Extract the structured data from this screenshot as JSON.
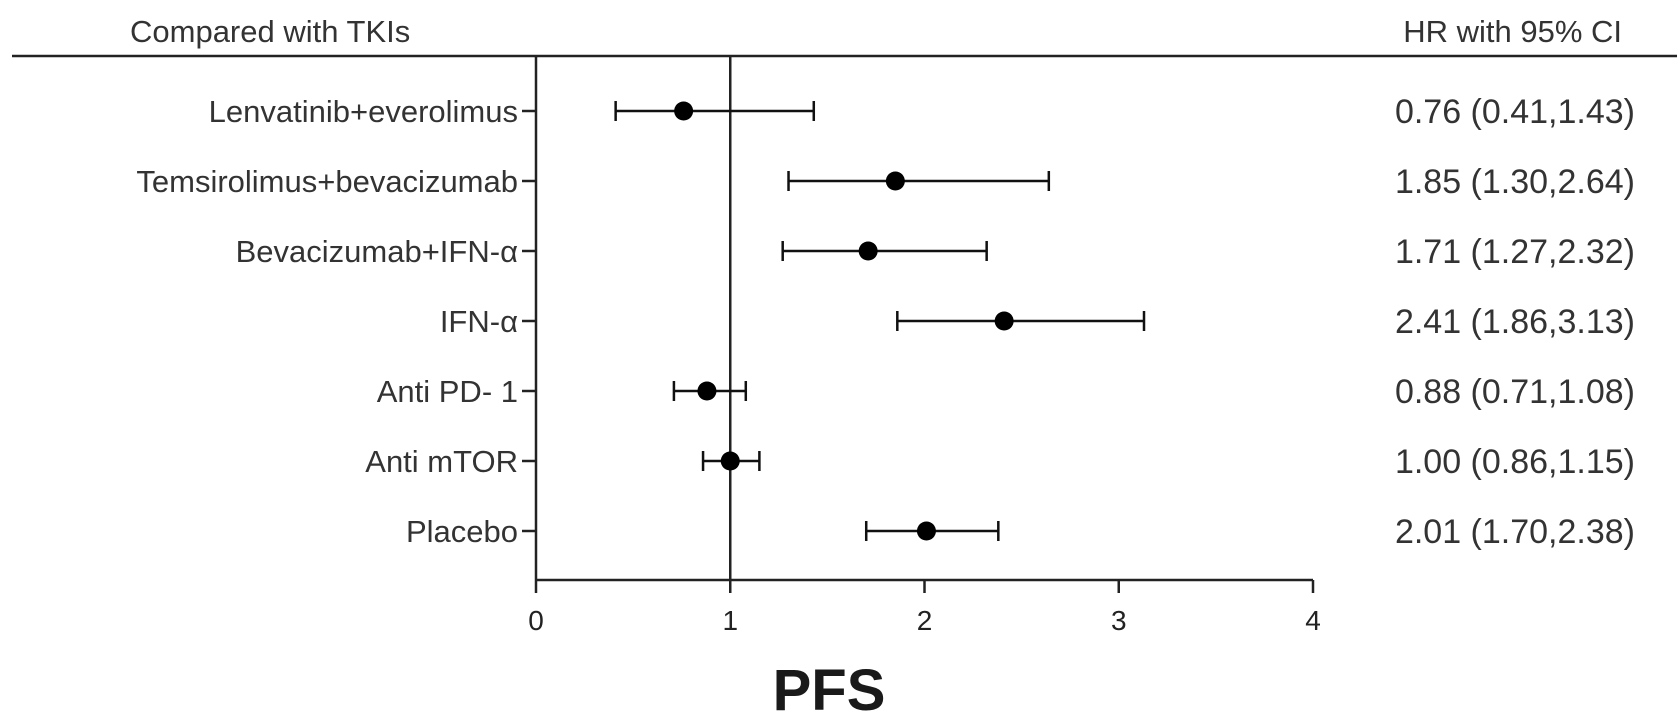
{
  "chart_data": {
    "type": "forest",
    "header_left": "Compared with TKIs",
    "header_right": "HR with 95% CI",
    "xlabel": "PFS",
    "xlim": [
      0,
      4
    ],
    "xticks": [
      "0",
      "1",
      "2",
      "3",
      "4"
    ],
    "reference_line": 1,
    "rows": [
      {
        "label": "Lenvatinib+everolimus",
        "hr": 0.76,
        "lo": 0.41,
        "hi": 1.43,
        "text": "0.76 (0.41,1.43)"
      },
      {
        "label": "Temsirolimus+bevacizumab",
        "hr": 1.85,
        "lo": 1.3,
        "hi": 2.64,
        "text": "1.85 (1.30,2.64)"
      },
      {
        "label": "Bevacizumab+IFN-α",
        "hr": 1.71,
        "lo": 1.27,
        "hi": 2.32,
        "text": "1.71 (1.27,2.32)"
      },
      {
        "label": "IFN-α",
        "hr": 2.41,
        "lo": 1.86,
        "hi": 3.13,
        "text": "2.41 (1.86,3.13)"
      },
      {
        "label": "Anti PD- 1",
        "hr": 0.88,
        "lo": 0.71,
        "hi": 1.08,
        "text": "0.88 (0.71,1.08)"
      },
      {
        "label": "Anti mTOR",
        "hr": 1.0,
        "lo": 0.86,
        "hi": 1.15,
        "text": "1.00 (0.86,1.15)"
      },
      {
        "label": "Placebo",
        "hr": 2.01,
        "lo": 1.7,
        "hi": 2.38,
        "text": "2.01 (1.70,2.38)"
      }
    ]
  }
}
